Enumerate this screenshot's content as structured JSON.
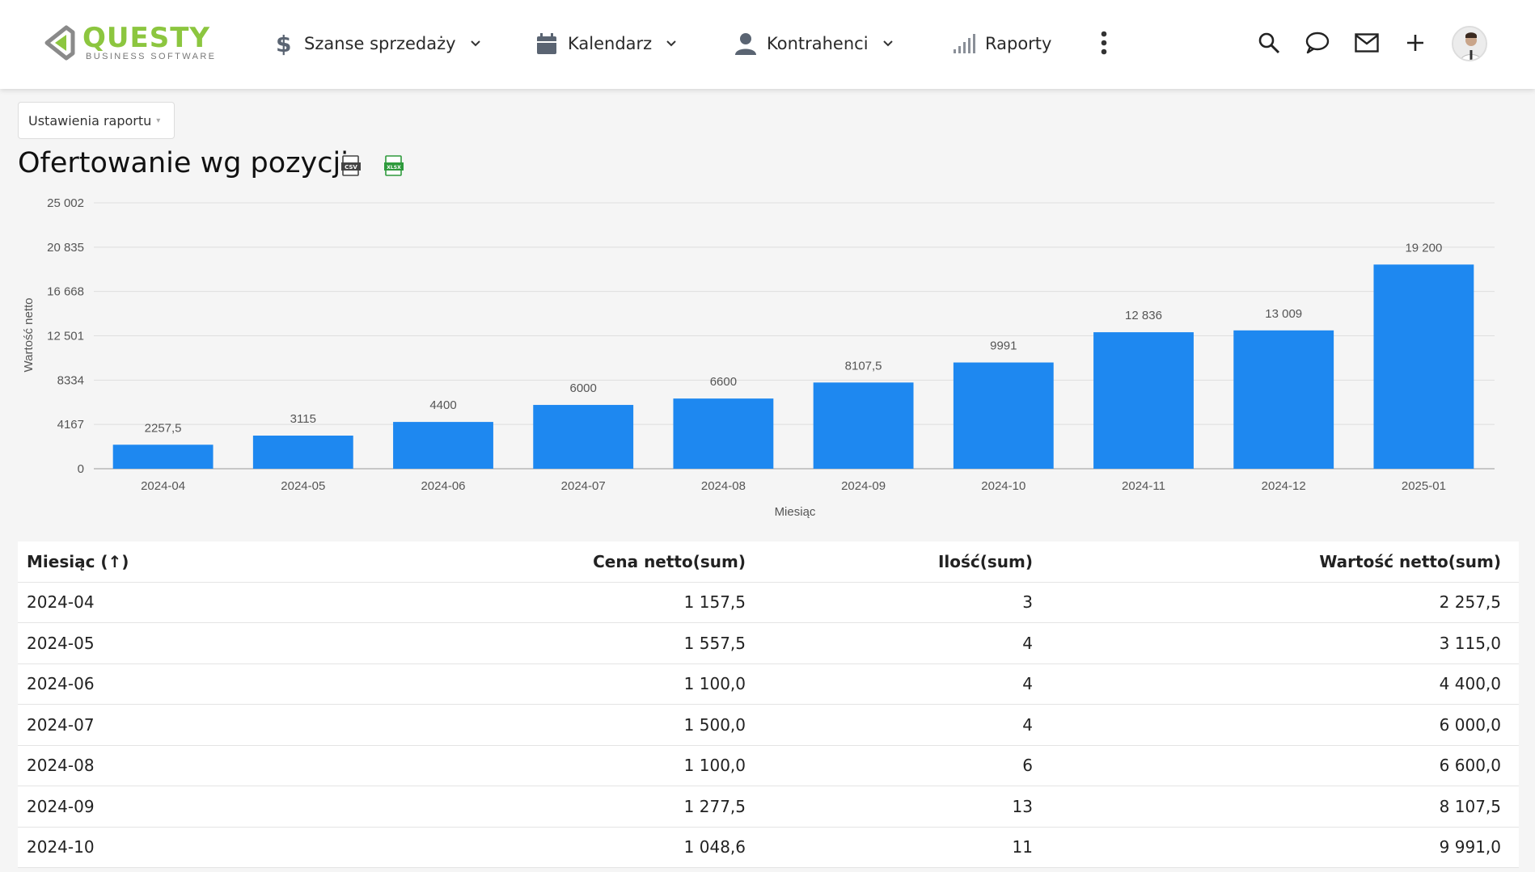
{
  "header": {
    "logo_text": "QUESTY",
    "logo_subtext": "BUSINESS SOFTWARE",
    "nav": [
      {
        "label": "Szanse sprzedaży",
        "icon": "dollar-icon"
      },
      {
        "label": "Kalendarz",
        "icon": "calendar-icon"
      },
      {
        "label": "Kontrahenci",
        "icon": "person-icon"
      },
      {
        "label": "Raporty",
        "icon": "signal-bars-icon"
      }
    ],
    "right_icons": [
      "search-icon",
      "chat-icon",
      "mail-icon",
      "plus-icon"
    ]
  },
  "report": {
    "settings_label": "Ustawienia raportu",
    "title": "Ofertowanie wg pozycji",
    "export_icons": [
      "csv-icon",
      "xlsx-icon"
    ]
  },
  "chart_data": {
    "type": "bar",
    "categories": [
      "2024-04",
      "2024-05",
      "2024-06",
      "2024-07",
      "2024-08",
      "2024-09",
      "2024-10",
      "2024-11",
      "2024-12",
      "2025-01"
    ],
    "values": [
      2257.5,
      3115,
      4400,
      6000,
      6600,
      8107.5,
      9991,
      12836,
      13009,
      19200
    ],
    "value_labels": [
      "2257,5",
      "3115",
      "4400",
      "6000",
      "6600",
      "8107,5",
      "9991",
      "12 836",
      "13 009",
      "19 200"
    ],
    "y_ticks": [
      "0",
      "4167",
      "8334",
      "12 501",
      "16 668",
      "20 835",
      "25 002"
    ],
    "y_tick_values": [
      0,
      4167,
      8334,
      12501,
      16668,
      20835,
      25002
    ],
    "ylim": [
      0,
      25002
    ],
    "xlabel": "Miesiąc",
    "ylabel": "Wartość netto",
    "bar_color": "#1e88f0",
    "grid": true
  },
  "table": {
    "headers": [
      "Miesiąc (↑)",
      "Cena netto(sum)",
      "Ilość(sum)",
      "Wartość netto(sum)"
    ],
    "rows": [
      [
        "2024-04",
        "1 157,5",
        "3",
        "2 257,5"
      ],
      [
        "2024-05",
        "1 557,5",
        "4",
        "3 115,0"
      ],
      [
        "2024-06",
        "1 100,0",
        "4",
        "4 400,0"
      ],
      [
        "2024-07",
        "1 500,0",
        "4",
        "6 000,0"
      ],
      [
        "2024-08",
        "1 100,0",
        "6",
        "6 600,0"
      ],
      [
        "2024-09",
        "1 277,5",
        "13",
        "8 107,5"
      ],
      [
        "2024-10",
        "1 048,6",
        "11",
        "9 991,0"
      ]
    ]
  }
}
